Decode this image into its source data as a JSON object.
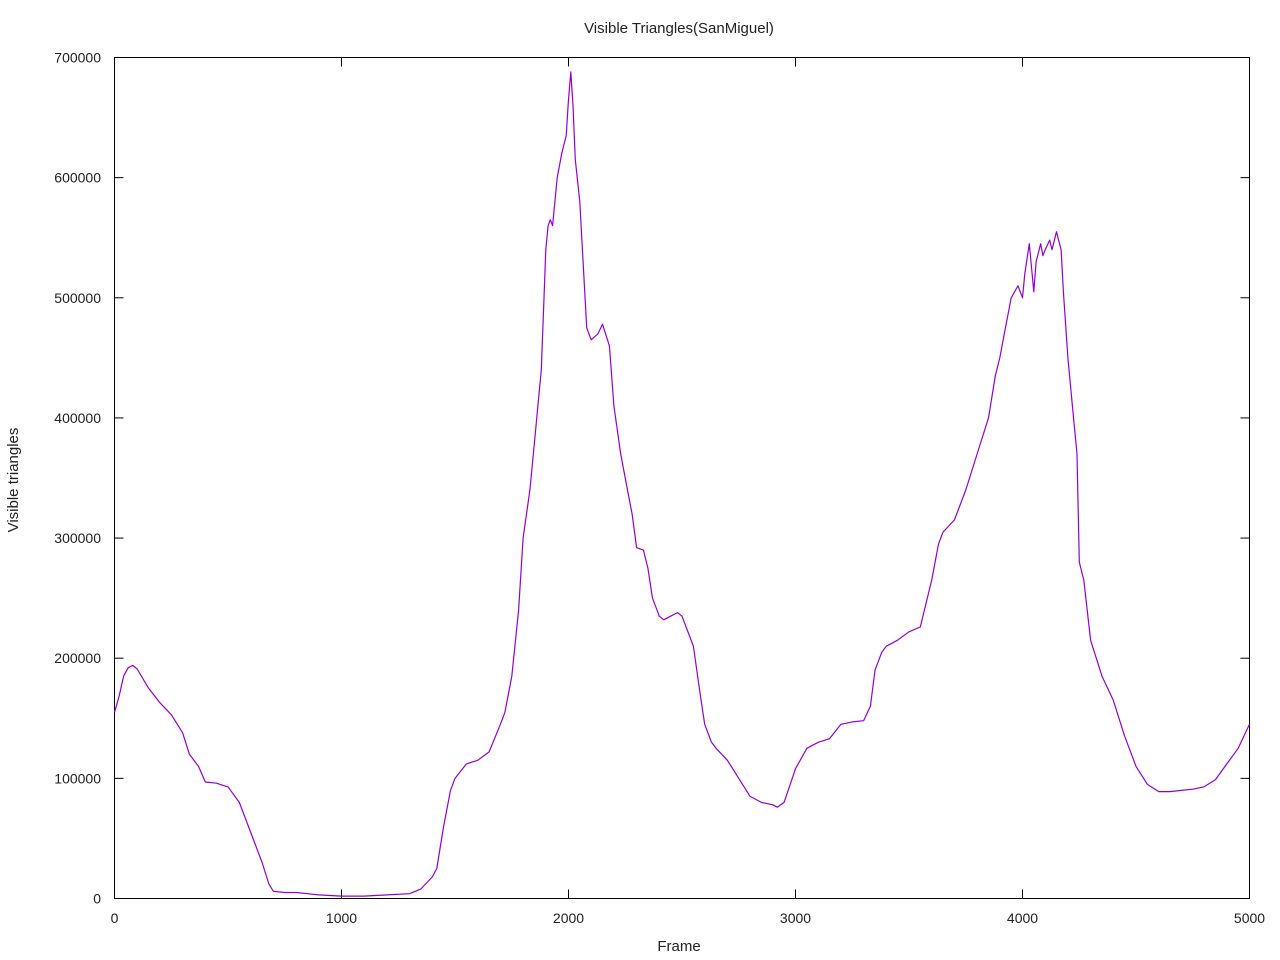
{
  "chart_data": {
    "type": "line",
    "title": "Visible Triangles(SanMiguel)",
    "xlabel": "Frame",
    "ylabel": "Visible triangles",
    "xlim": [
      0,
      5000
    ],
    "ylim": [
      0,
      700000
    ],
    "x_ticks": [
      0,
      1000,
      2000,
      3000,
      4000,
      5000
    ],
    "y_ticks": [
      0,
      100000,
      200000,
      300000,
      400000,
      500000,
      600000,
      700000
    ],
    "grid": false,
    "legend": "none",
    "colors": {
      "line": "#9400d3",
      "axis": "#000000",
      "text": "#222222"
    },
    "series": [
      {
        "x": [
          0,
          20,
          40,
          60,
          80,
          100,
          150,
          200,
          250,
          300,
          330,
          370,
          400,
          450,
          480,
          500,
          550,
          600,
          650,
          680,
          700,
          750,
          800,
          850,
          900,
          1000,
          1100,
          1200,
          1300,
          1350,
          1400,
          1420,
          1450,
          1480,
          1500,
          1550,
          1600,
          1650,
          1700,
          1720,
          1750,
          1780,
          1800,
          1830,
          1850,
          1870,
          1880,
          1900,
          1910,
          1920,
          1930,
          1950,
          1970,
          1990,
          2000,
          2010,
          2020,
          2030,
          2050,
          2080,
          2100,
          2130,
          2150,
          2180,
          2200,
          2230,
          2260,
          2280,
          2300,
          2330,
          2350,
          2370,
          2400,
          2420,
          2450,
          2480,
          2500,
          2550,
          2580,
          2600,
          2630,
          2650,
          2700,
          2750,
          2800,
          2850,
          2900,
          2920,
          2950,
          3000,
          3050,
          3100,
          3150,
          3200,
          3250,
          3300,
          3330,
          3350,
          3380,
          3400,
          3450,
          3500,
          3550,
          3600,
          3630,
          3650,
          3700,
          3750,
          3800,
          3850,
          3880,
          3900,
          3920,
          3950,
          3980,
          4000,
          4010,
          4030,
          4050,
          4060,
          4080,
          4090,
          4100,
          4120,
          4130,
          4150,
          4170,
          4180,
          4200,
          4220,
          4240,
          4250,
          4270,
          4300,
          4350,
          4400,
          4450,
          4500,
          4550,
          4600,
          4650,
          4700,
          4750,
          4800,
          4850,
          4900,
          4950,
          5000
        ],
        "y": [
          155000,
          168000,
          185000,
          192000,
          194000,
          191000,
          175000,
          163000,
          153000,
          138000,
          120000,
          110000,
          97000,
          96000,
          94000,
          93000,
          80000,
          55000,
          30000,
          12000,
          6000,
          5000,
          5000,
          4000,
          3000,
          2000,
          2000,
          3000,
          4000,
          8000,
          18000,
          25000,
          60000,
          90000,
          100000,
          112000,
          115000,
          122000,
          145000,
          155000,
          185000,
          240000,
          300000,
          340000,
          380000,
          420000,
          440000,
          540000,
          560000,
          565000,
          560000,
          600000,
          620000,
          635000,
          665000,
          688000,
          660000,
          615000,
          580000,
          475000,
          465000,
          470000,
          478000,
          460000,
          410000,
          370000,
          340000,
          320000,
          292000,
          290000,
          275000,
          250000,
          235000,
          232000,
          235000,
          238000,
          235000,
          210000,
          170000,
          145000,
          130000,
          125000,
          115000,
          100000,
          85000,
          80000,
          78000,
          76000,
          80000,
          108000,
          125000,
          130000,
          133000,
          145000,
          147000,
          148000,
          160000,
          190000,
          205000,
          210000,
          215000,
          222000,
          226000,
          265000,
          295000,
          305000,
          315000,
          340000,
          370000,
          400000,
          435000,
          450000,
          470000,
          500000,
          510000,
          500000,
          520000,
          545000,
          505000,
          530000,
          545000,
          535000,
          540000,
          548000,
          540000,
          555000,
          540000,
          505000,
          450000,
          410000,
          370000,
          280000,
          265000,
          215000,
          185000,
          165000,
          135000,
          110000,
          95000,
          89000,
          89000,
          90000,
          91000,
          93000,
          99000,
          112000,
          125000,
          145000
        ]
      }
    ]
  }
}
